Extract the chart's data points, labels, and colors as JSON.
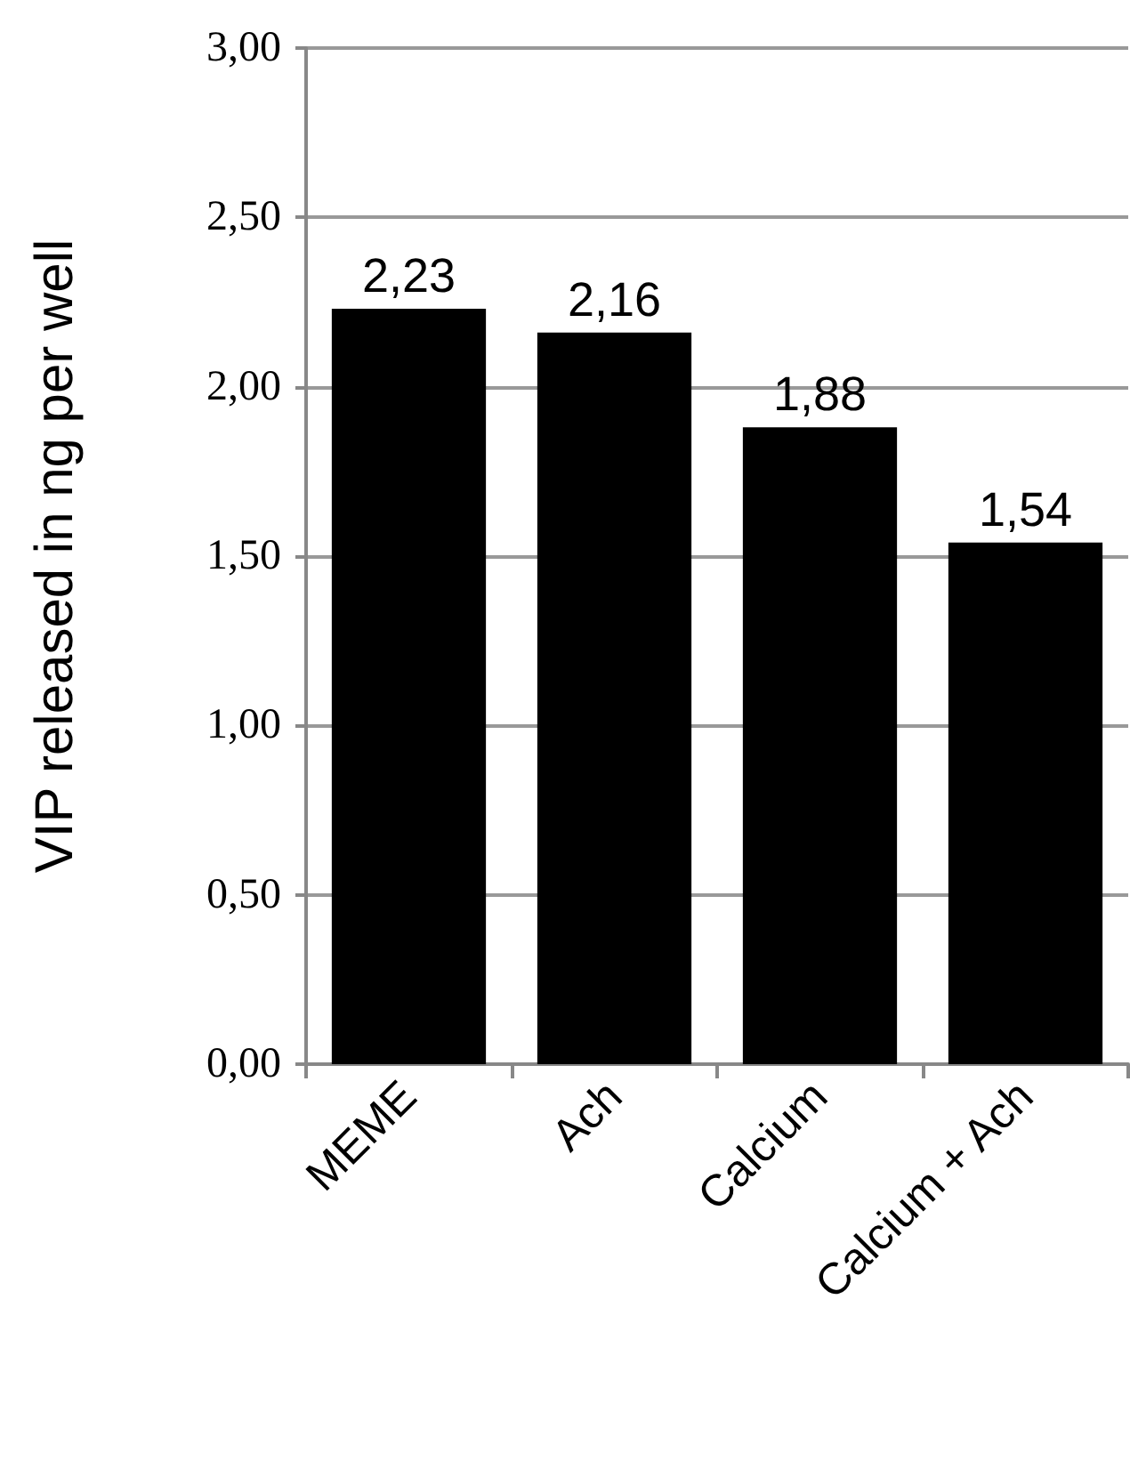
{
  "chart_data": {
    "type": "bar",
    "ylabel": "VIP released in ng per well",
    "categories": [
      "MEME",
      "Ach",
      "Calcium",
      "Calcium + Ach"
    ],
    "values": [
      2.23,
      2.16,
      1.88,
      1.54
    ],
    "value_labels": [
      "2,23",
      "2,16",
      "1,88",
      "1,54"
    ],
    "color": "#000000",
    "ylim": [
      0,
      3
    ],
    "yticks": [
      {
        "value": 0,
        "label": "0,00"
      },
      {
        "value": 0.5,
        "label": "0,50"
      },
      {
        "value": 1,
        "label": "1,00"
      },
      {
        "value": 1.5,
        "label": "1,50"
      },
      {
        "value": 2,
        "label": "2,00"
      },
      {
        "value": 2.5,
        "label": "2,50"
      },
      {
        "value": 3,
        "label": "3,00"
      }
    ],
    "grid": "y"
  }
}
